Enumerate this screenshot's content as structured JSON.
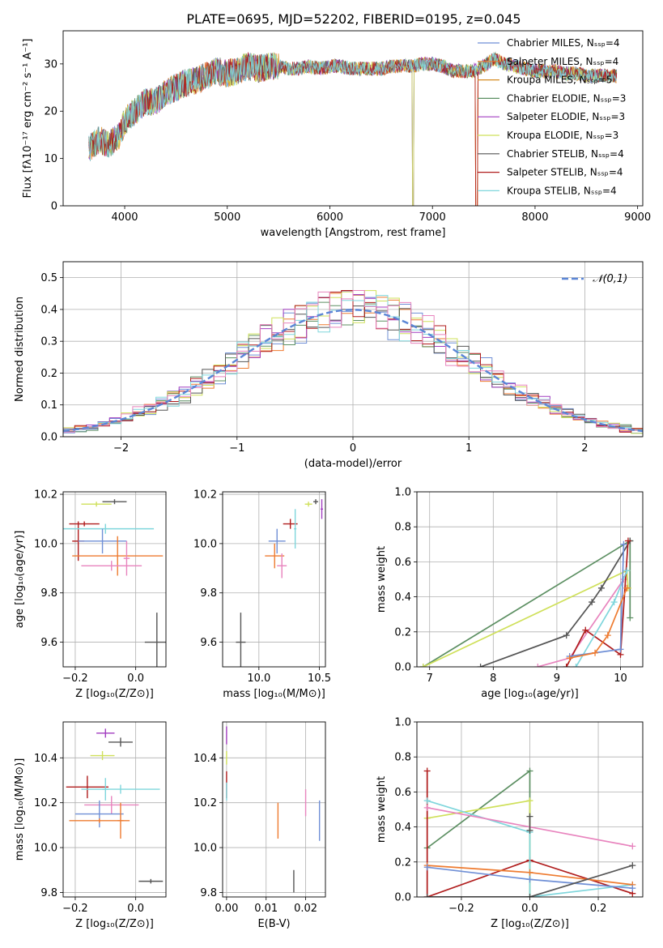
{
  "figure_title": "PLATE=0695, MJD=52202, FIBERID=0195, z=0.045",
  "colors": {
    "blue": "#6f8fd6",
    "orange": "#ee7b30",
    "green": "#5c8f62",
    "purple": "#a23ec0",
    "yellowgreen": "#cfe05a",
    "gray": "#555555",
    "red": "#b01c1c",
    "cyan": "#7fd6dc",
    "pink": "#e884be",
    "dashed": "#5b86d6"
  },
  "chart_data": [
    {
      "id": "spectrum",
      "type": "line",
      "title": "PLATE=0695, MJD=52202, FIBERID=0195, z=0.045",
      "xlabel": "wavelength [Angstrom, rest frame]",
      "ylabel": "Flux [fλ10⁻¹⁷ erg cm⁻² s⁻¹ A⁻¹]",
      "xlim": [
        3400,
        9050
      ],
      "ylim": [
        0,
        37
      ],
      "xticks": [
        4000,
        5000,
        6000,
        7000,
        8000,
        9000
      ],
      "yticks": [
        0,
        10,
        20,
        30
      ],
      "grid": false,
      "legend_position": "upper right",
      "series": [
        {
          "name": "Chabrier MILES, Nₛₛₚ=4",
          "color": "#6f8fd6",
          "cutoff": null
        },
        {
          "name": "Salpeter MILES, Nₛₛₚ=4",
          "color": "#ee7b30",
          "cutoff": 7420
        },
        {
          "name": "Kroupa MILES, Nₛₛₚ=5",
          "color": "#d68a1e",
          "cutoff": 7420
        },
        {
          "name": "Chabrier ELODIE, Nₛₛₚ=3",
          "color": "#5c8f62",
          "cutoff": 6800
        },
        {
          "name": "Salpeter ELODIE, Nₛₛₚ=3",
          "color": "#a23ec0",
          "cutoff": 6800
        },
        {
          "name": "Kroupa ELODIE, Nₛₛₚ=3",
          "color": "#cfe05a",
          "cutoff": 6800
        },
        {
          "name": "Chabrier STELIB, Nₛₛₚ=4",
          "color": "#555555",
          "cutoff": null
        },
        {
          "name": "Salpeter STELIB, Nₛₛₚ=4",
          "color": "#b01c1c",
          "cutoff": 7420
        },
        {
          "name": "Kroupa STELIB, Nₛₛₚ=4",
          "color": "#7fd6dc",
          "cutoff": null
        }
      ],
      "continuum": [
        [
          3650,
          12
        ],
        [
          3750,
          14
        ],
        [
          3850,
          13
        ],
        [
          3950,
          15
        ],
        [
          4000,
          18
        ],
        [
          4100,
          20
        ],
        [
          4200,
          22
        ],
        [
          4300,
          22
        ],
        [
          4400,
          24
        ],
        [
          4500,
          25
        ],
        [
          4600,
          26
        ],
        [
          4700,
          26.5
        ],
        [
          4800,
          27.5
        ],
        [
          4900,
          28.5
        ],
        [
          5000,
          28
        ],
        [
          5100,
          28.5
        ],
        [
          5200,
          29.5
        ],
        [
          5300,
          29
        ],
        [
          5400,
          29.5
        ],
        [
          5500,
          29.5
        ],
        [
          5600,
          29
        ],
        [
          5700,
          29
        ],
        [
          5800,
          29.5
        ],
        [
          5900,
          29
        ],
        [
          6000,
          29.5
        ],
        [
          6100,
          29.5
        ],
        [
          6200,
          29
        ],
        [
          6300,
          29
        ],
        [
          6400,
          29
        ],
        [
          6500,
          29
        ],
        [
          6600,
          29.5
        ],
        [
          6700,
          29.5
        ],
        [
          6800,
          29.5
        ],
        [
          6900,
          30
        ],
        [
          7000,
          30
        ],
        [
          7100,
          29.5
        ],
        [
          7200,
          28.5
        ],
        [
          7300,
          28.5
        ],
        [
          7400,
          28.5
        ],
        [
          7500,
          29.5
        ],
        [
          7600,
          31
        ],
        [
          7700,
          30
        ],
        [
          7800,
          29.5
        ],
        [
          7900,
          29
        ],
        [
          8000,
          28.5
        ],
        [
          8100,
          28.5
        ],
        [
          8200,
          28.5
        ],
        [
          8300,
          28
        ],
        [
          8400,
          28
        ],
        [
          8500,
          27.5
        ],
        [
          8600,
          27.5
        ],
        [
          8700,
          27.5
        ],
        [
          8800,
          27.5
        ]
      ]
    },
    {
      "id": "residuals",
      "type": "step-histogram",
      "xlabel": "(data-model)/error",
      "ylabel": "Normed distribution",
      "xlim": [
        -2.5,
        2.5
      ],
      "ylim": [
        0,
        0.55
      ],
      "xticks": [
        -2,
        -1,
        0,
        1,
        2
      ],
      "yticks": [
        0.0,
        0.1,
        0.2,
        0.3,
        0.4,
        0.5
      ],
      "grid": true,
      "legend_position": "upper right",
      "legend": "𝒩(0,1)"
    },
    {
      "id": "age-vs-Z",
      "type": "errorbar",
      "xlabel": "Z [log₁₀(Z/Z⊙)]",
      "ylabel": "age [log₁₀(age/yr)]",
      "xlim": [
        -0.24,
        0.1
      ],
      "ylim": [
        9.5,
        10.21
      ],
      "xticks": [
        -0.2,
        0.0
      ],
      "yticks": [
        9.6,
        9.8,
        10.0,
        10.2
      ],
      "grid": true,
      "points": [
        {
          "x": -0.13,
          "xerr": 0.05,
          "y": 10.16,
          "yerr": 0.01,
          "color": "#cfe05a"
        },
        {
          "x": -0.07,
          "xerr": 0.04,
          "y": 10.17,
          "yerr": 0.01,
          "color": "#555555"
        },
        {
          "x": -0.17,
          "xerr": 0.05,
          "y": 10.08,
          "yerr": 0.01,
          "color": "#b01c1c"
        },
        {
          "x": -0.19,
          "xerr": 0.02,
          "y": 10.01,
          "yerr": 0.08,
          "color": "#b01c1c"
        },
        {
          "x": -0.1,
          "xerr": 0.16,
          "y": 10.06,
          "yerr": 0.02,
          "color": "#7fd6dc"
        },
        {
          "x": -0.11,
          "xerr": 0.08,
          "y": 10.01,
          "yerr": 0.05,
          "color": "#6f8fd6"
        },
        {
          "x": -0.06,
          "xerr": 0.15,
          "y": 9.95,
          "yerr": 0.08,
          "color": "#ee7b30"
        },
        {
          "x": -0.08,
          "xerr": 0.1,
          "y": 9.91,
          "yerr": 0.02,
          "color": "#e884be"
        },
        {
          "x": -0.03,
          "xerr": 0.01,
          "y": 9.94,
          "yerr": 0.07,
          "color": "#e884be"
        },
        {
          "x": 0.07,
          "xerr": 0.04,
          "y": 9.6,
          "yerr": 0.12,
          "color": "#555555"
        }
      ]
    },
    {
      "id": "age-vs-mass",
      "type": "errorbar",
      "xlabel": "mass [log₁₀(M/M⊙)]",
      "ylabel": "",
      "xlim": [
        9.7,
        10.55
      ],
      "ylim": [
        9.5,
        10.21
      ],
      "xticks": [
        10.0,
        10.5
      ],
      "yticks": [
        9.6,
        9.8,
        10.0,
        10.2
      ],
      "grid": true,
      "points": [
        {
          "x": 10.41,
          "xerr": 0.03,
          "y": 10.16,
          "yerr": 0.01,
          "color": "#cfe05a"
        },
        {
          "x": 10.47,
          "xerr": 0.02,
          "y": 10.17,
          "yerr": 0.01,
          "color": "#555555"
        },
        {
          "x": 10.52,
          "xerr": 0.01,
          "y": 10.14,
          "yerr": 0.04,
          "color": "#a23ec0"
        },
        {
          "x": 10.26,
          "xerr": 0.06,
          "y": 10.08,
          "yerr": 0.02,
          "color": "#b01c1c"
        },
        {
          "x": 10.3,
          "xerr": 0.01,
          "y": 10.06,
          "yerr": 0.08,
          "color": "#7fd6dc"
        },
        {
          "x": 10.15,
          "xerr": 0.07,
          "y": 10.01,
          "yerr": 0.05,
          "color": "#6f8fd6"
        },
        {
          "x": 10.13,
          "xerr": 0.08,
          "y": 9.95,
          "yerr": 0.05,
          "color": "#ee7b30"
        },
        {
          "x": 10.19,
          "xerr": 0.04,
          "y": 9.91,
          "yerr": 0.05,
          "color": "#e884be"
        },
        {
          "x": 9.85,
          "xerr": 0.04,
          "y": 9.6,
          "yerr": 0.12,
          "color": "#555555"
        }
      ]
    },
    {
      "id": "massweight-vs-age",
      "type": "line",
      "xlabel": "age [log₁₀(age/yr)]",
      "ylabel": "mass weight",
      "xlim": [
        6.8,
        10.35
      ],
      "ylim": [
        0,
        1.0
      ],
      "xticks": [
        7,
        8,
        9,
        10
      ],
      "yticks": [
        0.0,
        0.2,
        0.4,
        0.6,
        0.8,
        1.0
      ],
      "grid": true,
      "series": [
        {
          "color": "#5c8f62",
          "points": [
            [
              6.9,
              0.0
            ],
            [
              10.15,
              0.72
            ],
            [
              10.15,
              0.28
            ]
          ]
        },
        {
          "color": "#cfe05a",
          "points": [
            [
              6.9,
              0.0
            ],
            [
              10.1,
              0.55
            ],
            [
              10.12,
              0.45
            ]
          ]
        },
        {
          "color": "#555555",
          "points": [
            [
              7.8,
              0.0
            ],
            [
              9.15,
              0.18
            ],
            [
              9.55,
              0.37
            ],
            [
              9.7,
              0.45
            ],
            [
              10.15,
              0.72
            ]
          ]
        },
        {
          "color": "#e884be",
          "points": [
            [
              8.7,
              0.0
            ],
            [
              9.2,
              0.05
            ],
            [
              10.05,
              0.5
            ]
          ]
        },
        {
          "color": "#b01c1c",
          "points": [
            [
              9.15,
              0.0
            ],
            [
              9.45,
              0.21
            ],
            [
              10.0,
              0.07
            ],
            [
              10.12,
              0.72
            ]
          ]
        },
        {
          "color": "#7fd6dc",
          "points": [
            [
              9.3,
              0.0
            ],
            [
              9.9,
              0.37
            ],
            [
              10.1,
              0.55
            ]
          ]
        },
        {
          "color": "#6f8fd6",
          "points": [
            [
              9.2,
              0.06
            ],
            [
              10.0,
              0.1
            ],
            [
              10.05,
              0.7
            ]
          ]
        },
        {
          "color": "#ee7b30",
          "points": [
            [
              9.2,
              0.05
            ],
            [
              9.6,
              0.08
            ],
            [
              9.8,
              0.18
            ],
            [
              10.1,
              0.45
            ]
          ]
        }
      ]
    },
    {
      "id": "mass-vs-Z",
      "type": "errorbar",
      "xlabel": "Z [log₁₀(Z/Z⊙)]",
      "ylabel": "mass [log₁₀(M/M⊙)]",
      "xlim": [
        -0.24,
        0.1
      ],
      "ylim": [
        9.78,
        10.56
      ],
      "xticks": [
        -0.2,
        0.0
      ],
      "yticks": [
        9.8,
        10.0,
        10.2,
        10.4
      ],
      "grid": true,
      "points": [
        {
          "x": -0.1,
          "xerr": 0.03,
          "y": 10.51,
          "yerr": 0.02,
          "color": "#a23ec0"
        },
        {
          "x": -0.05,
          "xerr": 0.04,
          "y": 10.47,
          "yerr": 0.02,
          "color": "#555555"
        },
        {
          "x": -0.11,
          "xerr": 0.04,
          "y": 10.41,
          "yerr": 0.02,
          "color": "#cfe05a"
        },
        {
          "x": -0.16,
          "xerr": 0.07,
          "y": 10.27,
          "yerr": 0.05,
          "color": "#b01c1c"
        },
        {
          "x": -0.05,
          "xerr": 0.13,
          "y": 10.26,
          "yerr": 0.02,
          "color": "#7fd6dc"
        },
        {
          "x": -0.1,
          "xerr": 0.01,
          "y": 10.26,
          "yerr": 0.05,
          "color": "#7fd6dc"
        },
        {
          "x": -0.08,
          "xerr": 0.09,
          "y": 10.19,
          "yerr": 0.04,
          "color": "#e884be"
        },
        {
          "x": -0.12,
          "xerr": 0.08,
          "y": 10.15,
          "yerr": 0.06,
          "color": "#6f8fd6"
        },
        {
          "x": -0.12,
          "xerr": 0.1,
          "y": 10.12,
          "yerr": 0.01,
          "color": "#ee7b30"
        },
        {
          "x": -0.05,
          "xerr": 0.01,
          "y": 10.12,
          "yerr": 0.08,
          "color": "#ee7b30"
        },
        {
          "x": 0.05,
          "xerr": 0.04,
          "y": 9.85,
          "yerr": 0.01,
          "color": "#555555"
        }
      ]
    },
    {
      "id": "mass-vs-EBV",
      "type": "errorbar",
      "xlabel": "E(B-V)",
      "ylabel": "",
      "xlim": [
        -0.001,
        0.025
      ],
      "ylim": [
        9.78,
        10.56
      ],
      "xticks": [
        0.0,
        0.01,
        0.02
      ],
      "yticks": [
        9.8,
        10.0,
        10.2,
        10.4
      ],
      "grid": true,
      "points": [
        {
          "x": 0.0,
          "xerr": 0.0,
          "y": 10.5,
          "yerr": 0.04,
          "color": "#a23ec0"
        },
        {
          "x": 0.0,
          "xerr": 0.0,
          "y": 10.4,
          "yerr": 0.03,
          "color": "#cfe05a"
        },
        {
          "x": 0.0,
          "xerr": 0.0,
          "y": 10.28,
          "yerr": 0.06,
          "color": "#b01c1c"
        },
        {
          "x": 0.0,
          "xerr": 0.0,
          "y": 10.25,
          "yerr": 0.04,
          "color": "#7fd6dc"
        },
        {
          "x": 0.013,
          "xerr": 0.0,
          "y": 10.12,
          "yerr": 0.08,
          "color": "#ee7b30"
        },
        {
          "x": 0.02,
          "xerr": 0.0,
          "y": 10.2,
          "yerr": 0.06,
          "color": "#e884be"
        },
        {
          "x": 0.0235,
          "xerr": 0.0,
          "y": 10.12,
          "yerr": 0.09,
          "color": "#6f8fd6"
        },
        {
          "x": 0.017,
          "xerr": 0.0,
          "y": 9.85,
          "yerr": 0.05,
          "color": "#555555"
        }
      ]
    },
    {
      "id": "massweight-vs-Z",
      "type": "line",
      "xlabel": "Z [log₁₀(Z/Z⊙)]",
      "ylabel": "mass weight",
      "xlim": [
        -0.33,
        0.33
      ],
      "ylim": [
        0,
        1.0
      ],
      "xticks": [
        -0.2,
        0.0,
        0.2
      ],
      "yticks": [
        0.0,
        0.2,
        0.4,
        0.6,
        0.8,
        1.0
      ],
      "grid": true,
      "series": [
        {
          "color": "#5c8f62",
          "points": [
            [
              -0.3,
              0.28
            ],
            [
              0.0,
              0.72
            ],
            [
              0.0,
              0.0
            ]
          ]
        },
        {
          "color": "#cfe05a",
          "points": [
            [
              -0.3,
              0.45
            ],
            [
              0.0,
              0.55
            ],
            [
              0.0,
              0.0
            ]
          ]
        },
        {
          "color": "#b01c1c",
          "points": [
            [
              -0.3,
              0.72
            ],
            [
              -0.3,
              0.0
            ],
            [
              0.0,
              0.21
            ],
            [
              0.3,
              0.02
            ]
          ]
        },
        {
          "color": "#7fd6dc",
          "points": [
            [
              -0.3,
              0.55
            ],
            [
              0.0,
              0.37
            ],
            [
              0.0,
              0.0
            ],
            [
              0.3,
              0.07
            ]
          ]
        },
        {
          "color": "#e884be",
          "points": [
            [
              -0.3,
              0.51
            ],
            [
              0.3,
              0.29
            ]
          ]
        },
        {
          "color": "#ee7b30",
          "points": [
            [
              -0.3,
              0.18
            ],
            [
              0.0,
              0.14
            ],
            [
              0.3,
              0.07
            ]
          ]
        },
        {
          "color": "#6f8fd6",
          "points": [
            [
              -0.3,
              0.17
            ],
            [
              0.0,
              0.1
            ],
            [
              0.3,
              0.05
            ]
          ]
        },
        {
          "color": "#555555",
          "points": [
            [
              -0.3,
              0.0
            ],
            [
              0.0,
              0.0
            ],
            [
              0.3,
              0.18
            ]
          ]
        },
        {
          "color": "#555555",
          "points": [
            [
              0.0,
              0.46
            ],
            [
              0.0,
              0.38
            ]
          ]
        }
      ]
    }
  ]
}
